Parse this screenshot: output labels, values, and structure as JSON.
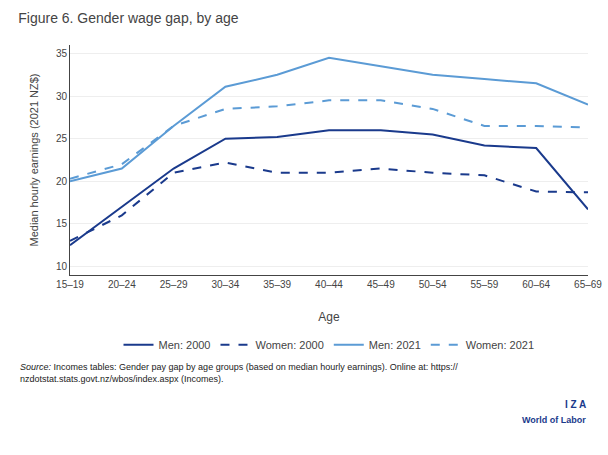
{
  "chart_data": {
    "type": "line",
    "title": "Figure 6. Gender wage gap, by age",
    "xlabel": "Age",
    "ylabel": "Median hourly earnings (2021 NZ$)",
    "categories": [
      "15–19",
      "20–24",
      "25–29",
      "30–34",
      "35–39",
      "40–44",
      "45–49",
      "50–54",
      "55–59",
      "60–64",
      "65–69"
    ],
    "series": [
      {
        "name": "Men: 2000",
        "color": "#1a3a8c",
        "line_style": "solid",
        "values": [
          12.5,
          17.0,
          21.5,
          25.0,
          25.2,
          26.0,
          26.0,
          25.5,
          24.2,
          23.9,
          16.7
        ]
      },
      {
        "name": "Women: 2000",
        "color": "#1a3a8c",
        "line_style": "dashed",
        "values": [
          13.0,
          16.0,
          21.0,
          22.2,
          21.0,
          21.0,
          21.5,
          21.0,
          20.7,
          18.8,
          18.7
        ]
      },
      {
        "name": "Men: 2021",
        "color": "#5b9bd5",
        "line_style": "solid",
        "values": [
          20.0,
          21.5,
          26.5,
          31.1,
          32.5,
          34.5,
          33.5,
          32.5,
          32.0,
          31.5,
          29.0
        ]
      },
      {
        "name": "Women: 2021",
        "color": "#5b9bd5",
        "line_style": "dashed",
        "values": [
          20.3,
          22.0,
          26.5,
          28.5,
          28.8,
          29.5,
          29.5,
          28.5,
          26.5,
          26.5,
          26.3
        ]
      }
    ],
    "ylim": [
      9,
      36
    ],
    "yticks": [
      10,
      15,
      20,
      25,
      30,
      35
    ],
    "grid": true,
    "legend": "bottom",
    "annotations": [
      "Source:",
      "Incomes tables: Gender pay gap by age groups (based on median hourly earnings). Online at: https://\nnzdotstat.stats.govt.nz/wbos/index.aspx (Incomes).",
      "I Z A",
      "World of Labor"
    ]
  }
}
